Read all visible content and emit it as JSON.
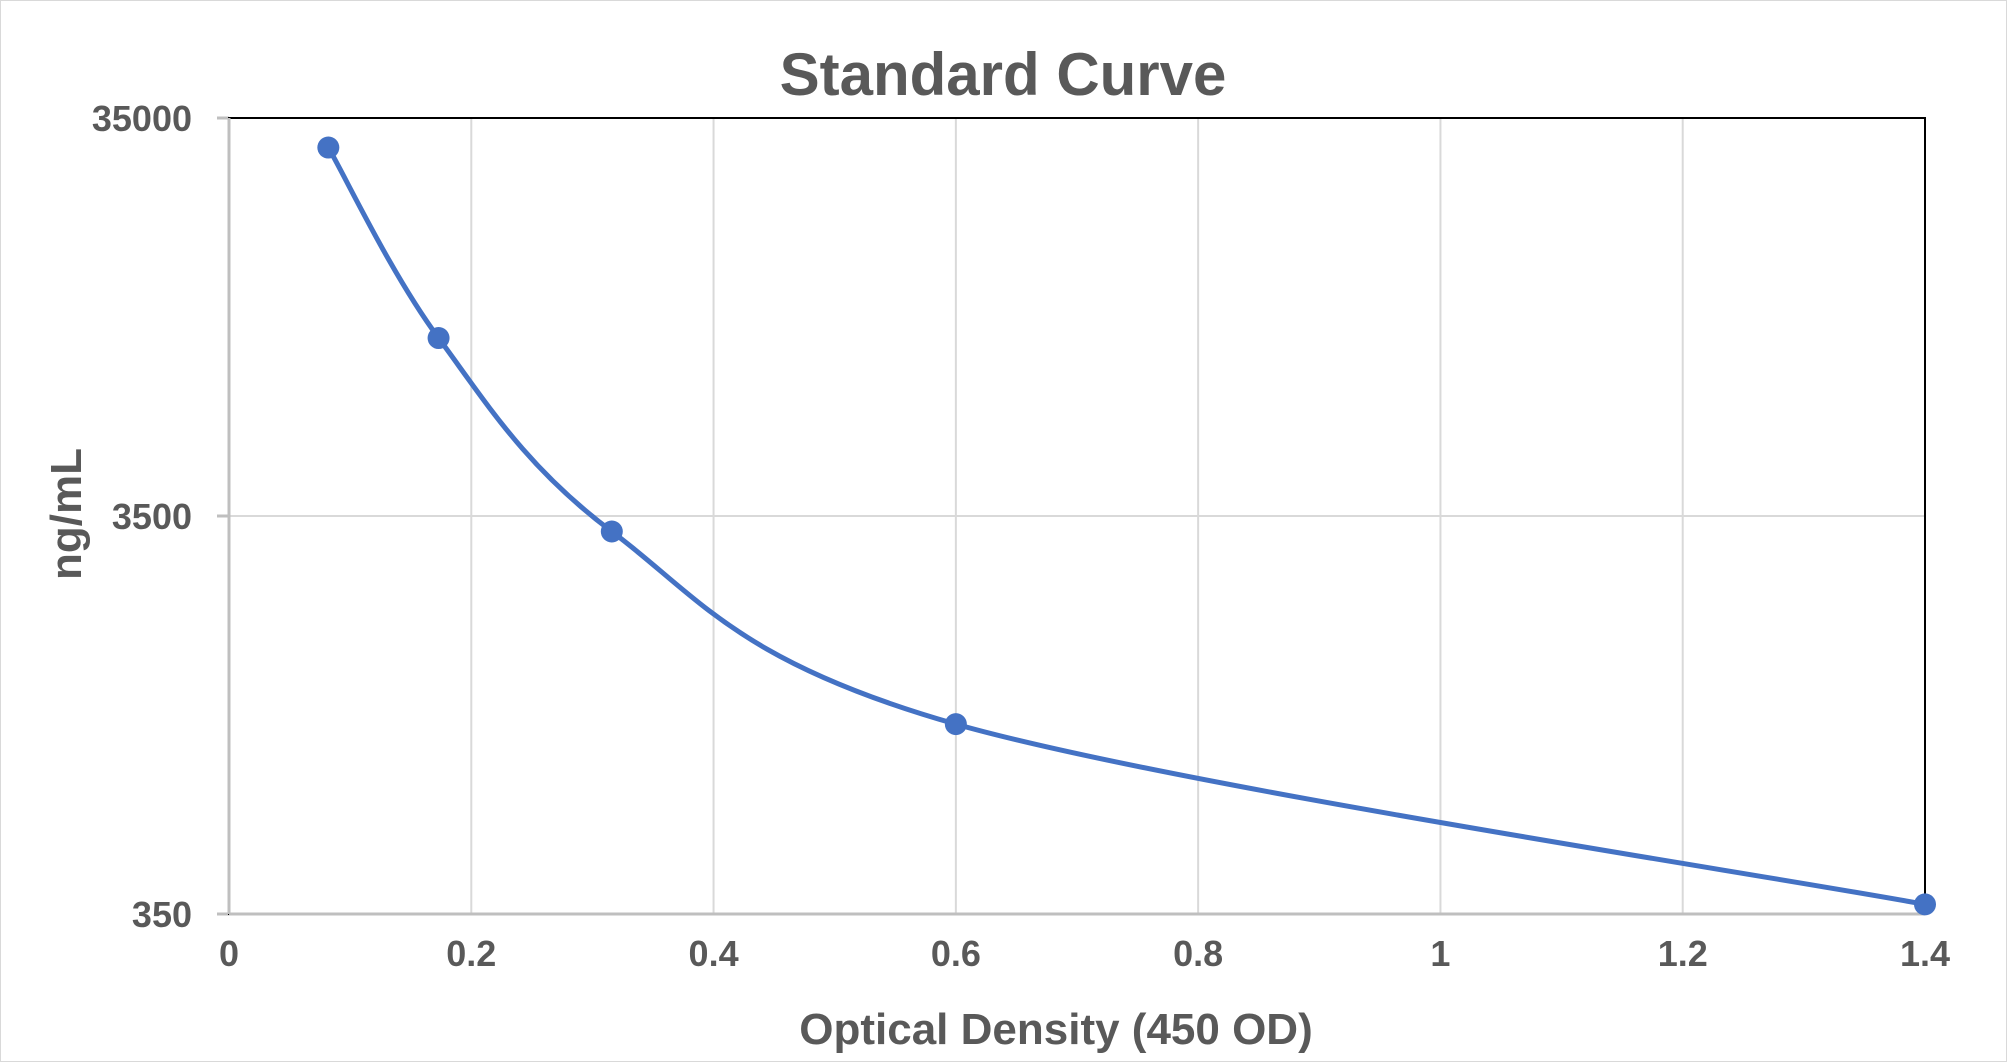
{
  "chart_data": {
    "type": "scatter",
    "title": "Standard Curve",
    "xlabel": "Optical Density (450 OD)",
    "ylabel": "ng/mL",
    "x_axis": {
      "min": 0,
      "max": 1.4,
      "ticks": [
        0,
        0.2,
        0.4,
        0.6,
        0.8,
        1,
        1.2,
        1.4
      ],
      "tick_labels": [
        "0",
        "0.2",
        "0.4",
        "0.6",
        "0.8",
        "1",
        "1.2",
        "1.4"
      ]
    },
    "y_axis": {
      "scale": "log",
      "min": 350,
      "max": 35000,
      "ticks": [
        350,
        3500,
        35000
      ],
      "tick_labels": [
        "350",
        "3500",
        "35000"
      ]
    },
    "grid": true,
    "legend": "none",
    "line_style": "smooth",
    "series": [
      {
        "color": "#4472c4",
        "points": [
          {
            "x": 0.082,
            "y": 29500
          },
          {
            "x": 0.173,
            "y": 9800
          },
          {
            "x": 0.316,
            "y": 3200
          },
          {
            "x": 0.6,
            "y": 1050
          },
          {
            "x": 1.4,
            "y": 370
          }
        ]
      }
    ]
  }
}
